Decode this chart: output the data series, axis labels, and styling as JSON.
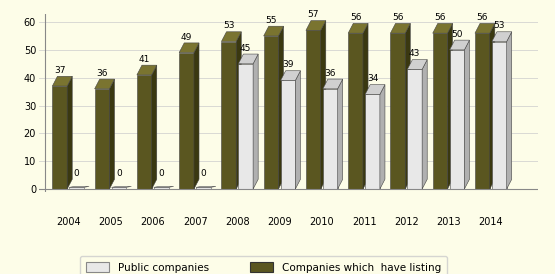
{
  "years": [
    "2004",
    "2005",
    "2006",
    "2007",
    "2008",
    "2009",
    "2010",
    "2011",
    "2012",
    "2013",
    "2014"
  ],
  "public": [
    0,
    0,
    0,
    0,
    45,
    39,
    36,
    34,
    43,
    50,
    53
  ],
  "listing": [
    37,
    36,
    41,
    49,
    53,
    55,
    57,
    56,
    56,
    56,
    56
  ],
  "public_face": "#e8e8e8",
  "public_side": "#b0b0b0",
  "public_top": "#d0d0d0",
  "listing_face": "#5a5620",
  "listing_side": "#3a3810",
  "listing_top": "#7a7430",
  "bg_color": "#fdfde8",
  "ylim": [
    0,
    60
  ],
  "yticks": [
    0,
    10,
    20,
    30,
    40,
    50,
    60
  ],
  "legend_public": "Public companies",
  "legend_listing": "Companies which  have listing",
  "grid_color": "#cccccc",
  "axis_color": "#888888"
}
